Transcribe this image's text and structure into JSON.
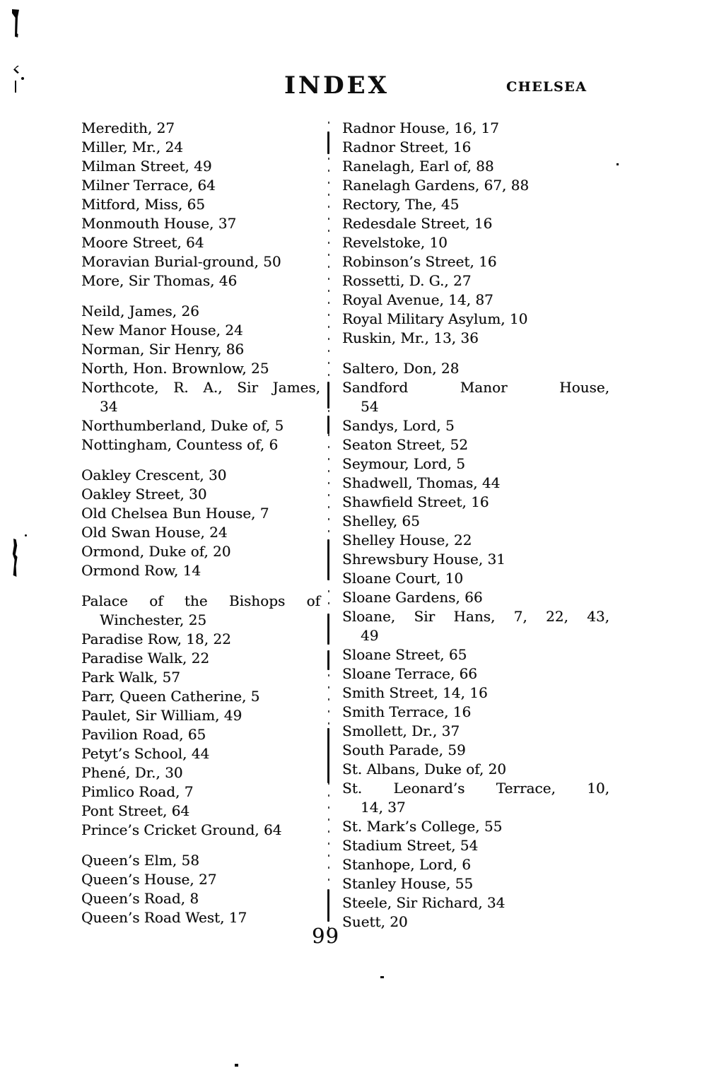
{
  "document": {
    "title": "INDEX",
    "running_head": "CHELSEA",
    "page_number": "99",
    "colors": {
      "ink": "#0d0d0d",
      "paper": "#ffffff"
    },
    "columns": {
      "left": [
        [
          [
            "Meredith, 27"
          ],
          [
            "Miller, Mr., 24"
          ],
          [
            "Milman Street, 49"
          ],
          [
            "Milner Terrace, 64"
          ],
          [
            "Mitford, Miss, 65"
          ],
          [
            "Monmouth House, 37"
          ],
          [
            "Moore Street, 64"
          ],
          [
            "Moravian Burial-ground, 50"
          ],
          [
            "More, Sir Thomas, 46"
          ]
        ],
        [
          [
            "Neild, James, 26"
          ],
          [
            "New Manor House, 24"
          ],
          [
            "Norman, Sir Henry, 86"
          ],
          [
            "North, Hon. Brownlow, 25"
          ],
          [
            "Northcote, R. A., Sir James,",
            "34"
          ],
          [
            "Northumberland, Duke of, 5"
          ],
          [
            "Nottingham, Countess of, 6"
          ]
        ],
        [
          [
            "Oakley Crescent, 30"
          ],
          [
            "Oakley Street, 30"
          ],
          [
            "Old Chelsea Bun House, 7"
          ],
          [
            "Old Swan House, 24"
          ],
          [
            "Ormond, Duke of, 20"
          ],
          [
            "Ormond Row, 14"
          ]
        ],
        [
          [
            "Palace of the Bishops of",
            "Winchester, 25"
          ],
          [
            "Paradise Row, 18, 22"
          ],
          [
            "Paradise Walk, 22"
          ],
          [
            "Park Walk, 57"
          ],
          [
            "Parr, Queen Catherine, 5"
          ],
          [
            "Paulet, Sir William, 49"
          ],
          [
            "Pavilion Road, 65"
          ],
          [
            "Petyt’s School, 44"
          ],
          [
            "Phené, Dr., 30"
          ],
          [
            "Pimlico Road, 7"
          ],
          [
            "Pont Street, 64"
          ],
          [
            "Prince’s Cricket Ground, 64"
          ]
        ],
        [
          [
            "Queen’s Elm, 58"
          ],
          [
            "Queen’s House, 27"
          ],
          [
            "Queen’s Road, 8"
          ],
          [
            "Queen’s Road West, 17"
          ]
        ]
      ],
      "right": [
        [
          [
            "Radnor House, 16, 17"
          ],
          [
            "Radnor Street, 16"
          ],
          [
            "Ranelagh, Earl of, 88"
          ],
          [
            "Ranelagh Gardens, 67, 88"
          ],
          [
            "Rectory, The, 45"
          ],
          [
            "Redesdale Street, 16"
          ],
          [
            "Revelstoke, 10"
          ],
          [
            "Robinson’s Street, 16"
          ],
          [
            "Rossetti, D. G., 27"
          ],
          [
            "Royal Avenue, 14, 87"
          ],
          [
            "Royal Military Asylum, 10"
          ],
          [
            "Ruskin, Mr., 13, 36"
          ]
        ],
        [
          [
            "Saltero, Don, 28"
          ],
          [
            "Sandford Manor House,",
            "54"
          ],
          [
            "Sandys, Lord, 5"
          ],
          [
            "Seaton Street, 52"
          ],
          [
            "Seymour, Lord, 5"
          ],
          [
            "Shadwell, Thomas, 44"
          ],
          [
            "Shawfield Street, 16"
          ],
          [
            "Shelley, 65"
          ],
          [
            "Shelley House, 22"
          ],
          [
            "Shrewsbury House, 31"
          ],
          [
            "Sloane Court, 10"
          ],
          [
            "Sloane Gardens, 66"
          ],
          [
            "Sloane, Sir Hans, 7, 22, 43,",
            "49"
          ],
          [
            "Sloane Street, 65"
          ],
          [
            "Sloane Terrace, 66"
          ],
          [
            "Smith Street, 14, 16"
          ],
          [
            "Smith Terrace, 16"
          ],
          [
            "Smollett, Dr., 37"
          ],
          [
            "South Parade, 59"
          ],
          [
            "St. Albans, Duke of, 20"
          ],
          [
            "St. Leonard’s Terrace, 10,",
            "14, 37"
          ],
          [
            "St. Mark’s College, 55"
          ],
          [
            "Stadium Street, 54"
          ],
          [
            "Stanhope, Lord, 6"
          ],
          [
            "Stanley House, 55"
          ],
          [
            "Steele, Sir Richard, 34"
          ],
          [
            "Suett, 20"
          ]
        ]
      ]
    }
  }
}
